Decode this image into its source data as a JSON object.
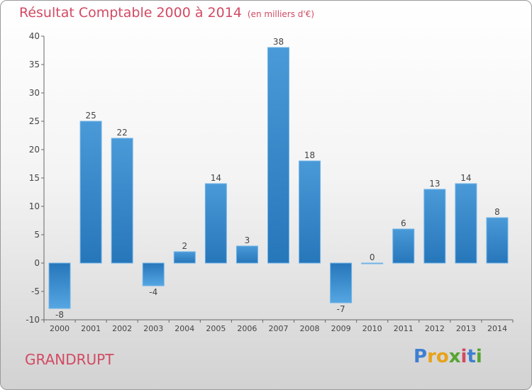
{
  "title": "Résultat Comptable 2000 à 2014",
  "subtitle": "(en milliers d'€)",
  "commune": "GRANDRUPT",
  "brand": {
    "letters": [
      "P",
      "r",
      "o",
      "x",
      "i",
      "t",
      "i"
    ],
    "colors": [
      "#3d7fd1",
      "#e8a21a",
      "#e8a21a",
      "#55a532",
      "#d24a63",
      "#3d7fd1",
      "#55a532"
    ]
  },
  "colors": {
    "accent": "#d24a63",
    "bar": "#3f8fd4",
    "bar_dark": "#2b78bf"
  },
  "chart_data": {
    "type": "bar",
    "categories": [
      "2000",
      "2001",
      "2002",
      "2003",
      "2004",
      "2005",
      "2006",
      "2007",
      "2008",
      "2009",
      "2010",
      "2011",
      "2012",
      "2013",
      "2014"
    ],
    "values": [
      -8,
      25,
      22,
      -4,
      2,
      14,
      3,
      38,
      18,
      -7,
      0,
      6,
      13,
      14,
      8
    ],
    "ylim": [
      -10,
      40
    ],
    "yticks": [
      -10,
      -5,
      0,
      5,
      10,
      15,
      20,
      25,
      30,
      35,
      40
    ],
    "grid": false,
    "legend": "none"
  }
}
